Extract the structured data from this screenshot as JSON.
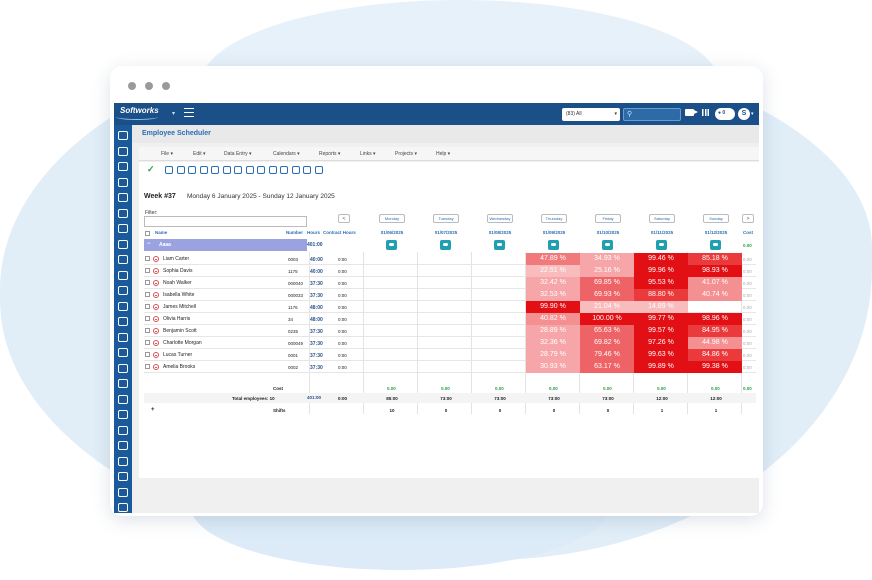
{
  "topbar": {
    "logo": "Softworks",
    "selector_value": "(83) All",
    "notifications": "0",
    "user_initial": "S"
  },
  "page_title": "Employee Scheduler",
  "menu": [
    "File",
    "Edit",
    "Data Entry",
    "Calendars",
    "Reports",
    "Links",
    "Projects",
    "Help"
  ],
  "week": {
    "label": "Week #37",
    "range": "Monday 6 January 2025 - Sunday 12 January 2025"
  },
  "filter_label": "Filter:",
  "nav": {
    "prev": "<",
    "next": ">"
  },
  "days": [
    "Monday",
    "Tuesday",
    "Wednesday",
    "Thursday",
    "Friday",
    "Saturday",
    "Sunday"
  ],
  "dates": [
    "01/06/2025",
    "01/07/2025",
    "01/08/2025",
    "01/09/2025",
    "01/10/2025",
    "01/11/2025",
    "01/12/2025"
  ],
  "columns": {
    "name": "Name",
    "number": "Number",
    "hours": "Hours",
    "contract": "Contract Hours",
    "cost": "Cost"
  },
  "group": {
    "name": "Aaaa",
    "hours": "401:00",
    "cost": "0.00"
  },
  "employees": [
    {
      "name": "Liam Carter",
      "number": "0003",
      "hours": "40:00",
      "contract": "0:00",
      "pct": [
        "47.89 %",
        "34.93 %",
        "99.46 %",
        "85.18 %"
      ],
      "cost": "0.00"
    },
    {
      "name": "Sophia Davis",
      "number": "1175",
      "hours": "40:00",
      "contract": "0:00",
      "pct": [
        "22.51 %",
        "25.16 %",
        "99.96 %",
        "98.93 %"
      ],
      "cost": "0.00"
    },
    {
      "name": "Noah Walker",
      "number": "000040",
      "hours": "37:30",
      "contract": "0:00",
      "pct": [
        "32.42 %",
        "69.85 %",
        "95.53 %",
        "41.07 %"
      ],
      "cost": "0.00"
    },
    {
      "name": "Isabella White",
      "number": "000033",
      "hours": "37:30",
      "contract": "0:00",
      "pct": [
        "32.53 %",
        "69.93 %",
        "88.80 %",
        "40.74 %"
      ],
      "cost": "0.00"
    },
    {
      "name": "James Mitchell",
      "number": "1176",
      "hours": "48:00",
      "contract": "0:00",
      "pct": [
        "99.90 %",
        "21.04 %",
        "14.89 %",
        ""
      ],
      "cost": "0.00"
    },
    {
      "name": "Olivia Harris",
      "number": "34",
      "hours": "48:00",
      "contract": "0:00",
      "pct": [
        "40.82 %",
        "100.00 %",
        "99.77 %",
        "98.96 %"
      ],
      "cost": "0.00"
    },
    {
      "name": "Benjamin Scott",
      "number": "0235",
      "hours": "37:30",
      "contract": "0:00",
      "pct": [
        "28.89 %",
        "65.63 %",
        "99.57 %",
        "84.95 %"
      ],
      "cost": "0.00"
    },
    {
      "name": "Charlotte Morgan",
      "number": "000049",
      "hours": "37:30",
      "contract": "0:00",
      "pct": [
        "32.36 %",
        "69.82 %",
        "97.26 %",
        "44.98 %"
      ],
      "cost": "0.00"
    },
    {
      "name": "Lucas Turner",
      "number": "0001",
      "hours": "37:30",
      "contract": "0:00",
      "pct": [
        "28.79 %",
        "79.46 %",
        "99.63 %",
        "84.86 %"
      ],
      "cost": "0.00"
    },
    {
      "name": "Amelia Brooks",
      "number": "0002",
      "hours": "37:30",
      "contract": "0:00",
      "pct": [
        "30.93 %",
        "63.17 %",
        "99.89 %",
        "99.38 %"
      ],
      "cost": "0.00"
    }
  ],
  "footer": {
    "cost_label": "Cost",
    "cost_values": [
      "0.00",
      "0.00",
      "0.00",
      "0.00",
      "0.00",
      "0.00",
      "0.00"
    ],
    "cost_total": "0.00",
    "total_label": "Total employees: 10",
    "total_hours": "401:00",
    "total_contract": "0:00",
    "day_totals": [
      "85:00",
      "73:00",
      "73:00",
      "73:00",
      "73:00",
      "12:00",
      "12:00"
    ],
    "plus": "+",
    "shifts_label": "Shifts",
    "shifts": [
      "10",
      "0",
      "0",
      "0",
      "0",
      "1",
      "1"
    ]
  }
}
